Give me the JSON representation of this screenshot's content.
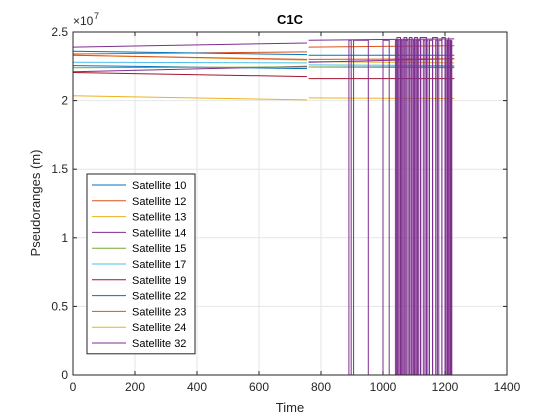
{
  "chart_data": {
    "type": "line",
    "title": "C1C",
    "xlabel": "Time",
    "ylabel": "Pseudoranges (m)",
    "y_exponent_label": "×10",
    "y_exponent_power": "7",
    "xlim": [
      0,
      1400
    ],
    "ylim": [
      0,
      2.5
    ],
    "y_scale": 10000000,
    "grid": true,
    "legend_placement": "bottom-left",
    "x_ticks": [
      "0",
      "200",
      "400",
      "600",
      "800",
      "1000",
      "1200",
      "1400"
    ],
    "y_ticks": [
      "0",
      "0.5",
      "1",
      "1.5",
      "2",
      "2.5"
    ],
    "series": [
      {
        "name": "Satellite 10",
        "color": "#0072BD",
        "segments": [
          [
            [
              0,
              2.255
            ],
            [
              755,
              2.233
            ]
          ],
          [
            [
              760,
              2.245
            ],
            [
              1230,
              2.245
            ]
          ]
        ]
      },
      {
        "name": "Satellite 12",
        "color": "#D95319",
        "segments": [
          [
            [
              0,
              2.34
            ],
            [
              755,
              2.355
            ]
          ],
          [
            [
              760,
              2.39
            ],
            [
              1230,
              2.4
            ]
          ]
        ]
      },
      {
        "name": "Satellite 13",
        "color": "#EDB120",
        "segments": [
          [
            [
              0,
              2.33
            ],
            [
              755,
              2.295
            ]
          ],
          [
            [
              760,
              2.285
            ],
            [
              1230,
              2.275
            ]
          ]
        ]
      },
      {
        "name": "Satellite 14",
        "color": "#7E2F8E",
        "segments": [
          [
            [
              0,
              2.21
            ],
            [
              755,
              2.25
            ]
          ],
          [
            [
              760,
              2.28
            ],
            [
              1230,
              2.305
            ]
          ]
        ]
      },
      {
        "name": "Satellite 15",
        "color": "#77AC30",
        "segments": [
          [
            [
              0,
              2.24
            ],
            [
              755,
              2.245
            ]
          ],
          [
            [
              760,
              2.245
            ],
            [
              1230,
              2.24
            ]
          ]
        ]
      },
      {
        "name": "Satellite 17",
        "color": "#4DBEEE",
        "segments": [
          [
            [
              0,
              2.28
            ],
            [
              755,
              2.275
            ]
          ],
          [
            [
              760,
              2.26
            ],
            [
              1230,
              2.255
            ]
          ]
        ]
      },
      {
        "name": "Satellite 19",
        "color": "#A2142F",
        "segments": [
          [
            [
              0,
              2.205
            ],
            [
              755,
              2.175
            ]
          ],
          [
            [
              760,
              2.16
            ],
            [
              1230,
              2.16
            ]
          ]
        ]
      },
      {
        "name": "Satellite 22",
        "color": "#0072BD",
        "segments": [
          [
            [
              0,
              2.36
            ],
            [
              755,
              2.335
            ]
          ],
          [
            [
              760,
              2.33
            ],
            [
              1230,
              2.33
            ]
          ]
        ]
      },
      {
        "name": "Satellite 23",
        "color": "#D95319",
        "segments": [
          [
            [
              0,
              2.33
            ],
            [
              755,
              2.3
            ]
          ],
          [
            [
              760,
              2.3
            ],
            [
              1230,
              2.305
            ]
          ]
        ]
      },
      {
        "name": "Satellite 24",
        "color": "#EDB120",
        "segments": [
          [
            [
              0,
              2.035
            ],
            [
              755,
              2.005
            ]
          ],
          [
            [
              760,
              2.02
            ],
            [
              1230,
              2.015
            ]
          ]
        ]
      },
      {
        "name": "Satellite 32",
        "color": "#7E2F8E",
        "segments": [
          [
            [
              0,
              2.39
            ],
            [
              755,
              2.42
            ]
          ],
          [
            [
              760,
              2.44
            ],
            [
              1230,
              2.45
            ]
          ]
        ]
      }
    ],
    "spike_data": {
      "series": "Satellite 14",
      "color": "#7E2F8E",
      "base_level": 2.44,
      "x_values": [
        890,
        905,
        1000,
        1040,
        1048,
        1056,
        1064,
        1072,
        1090,
        1098,
        1106,
        1114,
        1130,
        1140,
        1150,
        1170,
        1180,
        1200,
        1208,
        1216,
        1222
      ]
    },
    "spike_data_2": {
      "series": "Satellite 32",
      "color": "#7E2F8E",
      "base_level": 2.46,
      "x_values": [
        1045,
        1068,
        1085,
        1102,
        1120,
        1160,
        1190,
        1212
      ]
    }
  }
}
